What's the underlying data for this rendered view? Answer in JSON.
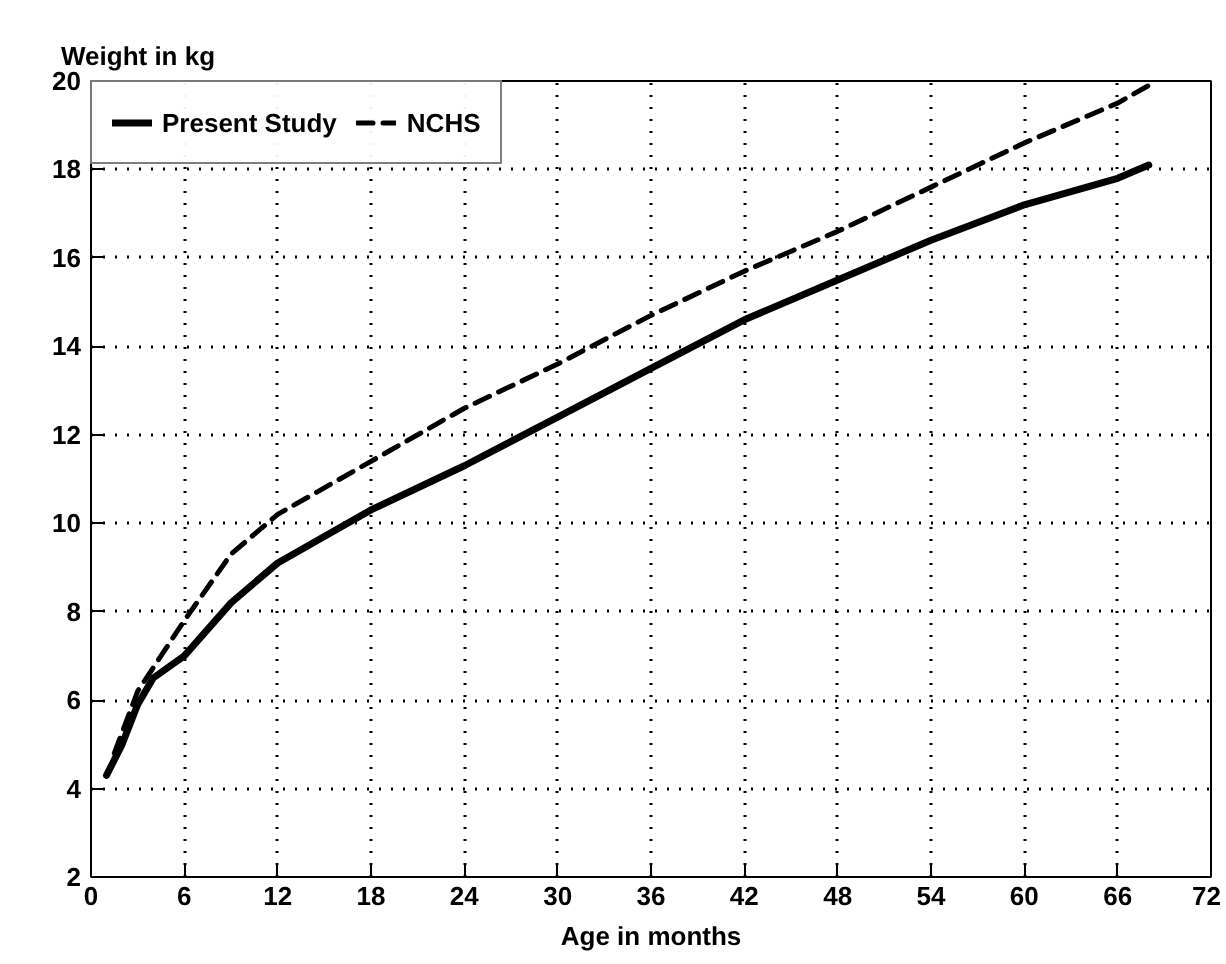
{
  "chart_data": {
    "type": "line",
    "ylabel": "Weight in kg",
    "xlabel": "Age in months",
    "xlim": [
      0,
      72
    ],
    "xticks": [
      0,
      6,
      12,
      18,
      24,
      30,
      36,
      42,
      48,
      54,
      60,
      66,
      72
    ],
    "ylim": [
      2,
      20
    ],
    "yticks": [
      2,
      4,
      6,
      8,
      10,
      12,
      14,
      16,
      18,
      20
    ],
    "grid": true,
    "legend": "top left",
    "marker": "none",
    "series": [
      {
        "name": "Present Study",
        "color": "#000000",
        "line_style": "solid",
        "x": [
          1,
          2,
          3,
          4,
          6,
          9,
          12,
          18,
          24,
          30,
          36,
          42,
          48,
          54,
          60,
          66,
          68
        ],
        "values": [
          4.3,
          5.0,
          5.9,
          6.5,
          7.0,
          8.2,
          9.1,
          10.3,
          11.3,
          12.4,
          13.5,
          14.6,
          15.5,
          16.4,
          17.2,
          17.8,
          18.1
        ]
      },
      {
        "name": "NCHS",
        "color": "#000000",
        "line_style": "dashed",
        "x": [
          1.5,
          3,
          6,
          9,
          12,
          18,
          24,
          30,
          36,
          42,
          48,
          54,
          60,
          66,
          68
        ],
        "values": [
          4.8,
          6.2,
          7.8,
          9.3,
          10.2,
          11.4,
          12.6,
          13.6,
          14.7,
          15.7,
          16.6,
          17.6,
          18.6,
          19.5,
          19.9
        ]
      }
    ]
  }
}
